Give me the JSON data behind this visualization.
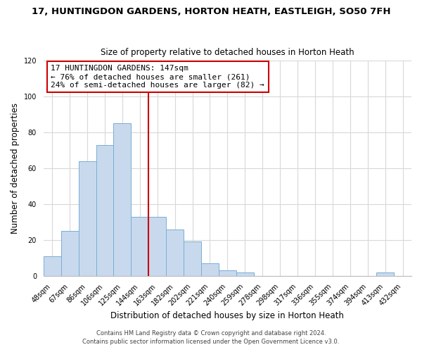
{
  "title": "17, HUNTINGDON GARDENS, HORTON HEATH, EASTLEIGH, SO50 7FH",
  "subtitle": "Size of property relative to detached houses in Horton Heath",
  "xlabel": "Distribution of detached houses by size in Horton Heath",
  "ylabel": "Number of detached properties",
  "bar_labels": [
    "48sqm",
    "67sqm",
    "86sqm",
    "106sqm",
    "125sqm",
    "144sqm",
    "163sqm",
    "182sqm",
    "202sqm",
    "221sqm",
    "240sqm",
    "259sqm",
    "278sqm",
    "298sqm",
    "317sqm",
    "336sqm",
    "355sqm",
    "374sqm",
    "394sqm",
    "413sqm",
    "432sqm"
  ],
  "bar_heights": [
    11,
    25,
    64,
    73,
    85,
    33,
    33,
    26,
    19,
    7,
    3,
    2,
    0,
    0,
    0,
    0,
    0,
    0,
    0,
    2,
    0
  ],
  "bar_color": "#c8d9ee",
  "bar_edge_color": "#7aaed4",
  "vline_color": "#cc0000",
  "annotation_text": "17 HUNTINGDON GARDENS: 147sqm\n← 76% of detached houses are smaller (261)\n24% of semi-detached houses are larger (82) →",
  "annotation_box_color": "#ffffff",
  "annotation_box_edge": "#cc0000",
  "ylim": [
    0,
    120
  ],
  "yticks": [
    0,
    20,
    40,
    60,
    80,
    100,
    120
  ],
  "footer1": "Contains HM Land Registry data © Crown copyright and database right 2024.",
  "footer2": "Contains public sector information licensed under the Open Government Licence v3.0.",
  "background_color": "#ffffff",
  "grid_color": "#d8d8d8",
  "title_fontsize": 9.5,
  "subtitle_fontsize": 8.5,
  "axis_label_fontsize": 8.5,
  "tick_fontsize": 7,
  "annotation_fontsize": 8,
  "footer_fontsize": 6
}
